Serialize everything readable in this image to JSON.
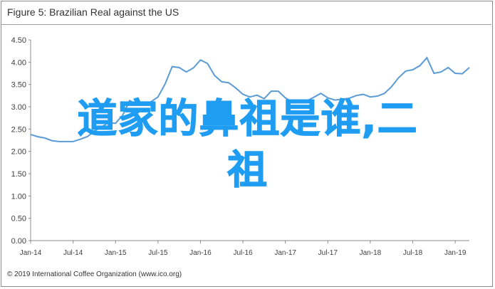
{
  "title": "Figure 5: Brazilian Real against the US",
  "footer": "© 2019 International Coffee Organization (www.ico.org)",
  "overlay": {
    "line1": "道家的鼻祖是谁,二",
    "line2": "祖",
    "color": "#1f9df2"
  },
  "colors": {
    "line": "#5b9bd5",
    "axis": "#8c8c8c"
  },
  "chart_data": {
    "type": "line",
    "title": "Figure 5: Brazilian Real against the US",
    "xlabel": "",
    "ylabel": "",
    "ylim": [
      0,
      4.5
    ],
    "yticks": [
      "0.00",
      "0.50",
      "1.00",
      "1.50",
      "2.00",
      "2.50",
      "3.00",
      "3.50",
      "4.00",
      "4.50"
    ],
    "xticks": [
      "Jan-14",
      "Jul-14",
      "Jan-15",
      "Jul-15",
      "Jan-16",
      "Jul-16",
      "Jan-17",
      "Jul-17",
      "Jan-18",
      "Jul-18",
      "Jan-19"
    ],
    "grid": false,
    "series": [
      {
        "x": [
          "Jan-14",
          "Feb-14",
          "Mar-14",
          "Apr-14",
          "May-14",
          "Jun-14",
          "Jul-14",
          "Aug-14",
          "Sep-14",
          "Oct-14",
          "Nov-14",
          "Dec-14",
          "Jan-15",
          "Feb-15",
          "Mar-15",
          "Apr-15",
          "May-15",
          "Jun-15",
          "Jul-15",
          "Aug-15",
          "Sep-15",
          "Oct-15",
          "Nov-15",
          "Dec-15",
          "Jan-16",
          "Feb-16",
          "Mar-16",
          "Apr-16",
          "May-16",
          "Jun-16",
          "Jul-16",
          "Aug-16",
          "Sep-16",
          "Oct-16",
          "Nov-16",
          "Dec-16",
          "Jan-17",
          "Feb-17",
          "Mar-17",
          "Apr-17",
          "May-17",
          "Jun-17",
          "Jul-17",
          "Aug-17",
          "Sep-17",
          "Oct-17",
          "Nov-17",
          "Dec-17",
          "Jan-18",
          "Feb-18",
          "Mar-18",
          "Apr-18",
          "May-18",
          "Jun-18",
          "Jul-18",
          "Aug-18",
          "Sep-18",
          "Oct-18",
          "Nov-18",
          "Dec-18",
          "Jan-19",
          "Feb-19",
          "Mar-19"
        ],
        "values": [
          2.38,
          2.33,
          2.3,
          2.24,
          2.22,
          2.22,
          2.22,
          2.27,
          2.33,
          2.45,
          2.55,
          2.64,
          2.63,
          2.81,
          3.14,
          3.04,
          3.06,
          3.11,
          3.22,
          3.51,
          3.9,
          3.88,
          3.78,
          3.87,
          4.05,
          3.97,
          3.7,
          3.56,
          3.54,
          3.42,
          3.28,
          3.22,
          3.26,
          3.18,
          3.35,
          3.35,
          3.2,
          3.1,
          3.11,
          3.13,
          3.21,
          3.3,
          3.2,
          3.15,
          3.17,
          3.19,
          3.25,
          3.28,
          3.22,
          3.24,
          3.3,
          3.45,
          3.65,
          3.8,
          3.83,
          3.92,
          4.1,
          3.75,
          3.78,
          3.88,
          3.75,
          3.74,
          3.88
        ]
      }
    ]
  }
}
